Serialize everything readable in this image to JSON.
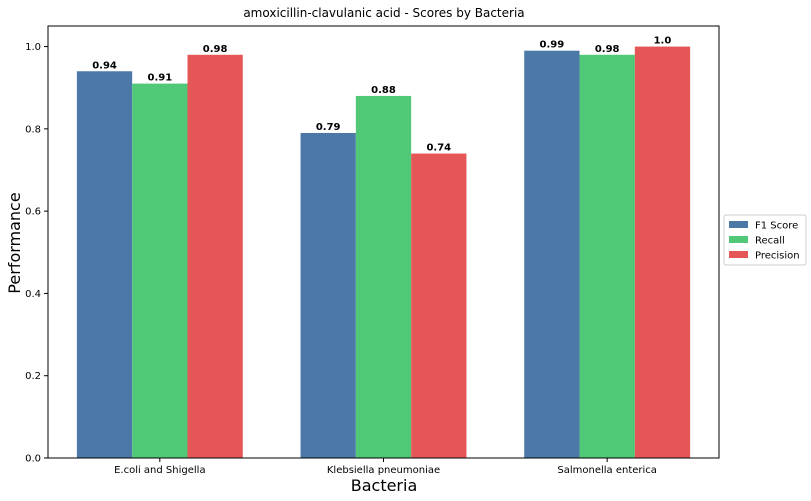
{
  "chart_data": {
    "type": "bar",
    "title": "amoxicillin-clavulanic acid - Scores by Bacteria",
    "xlabel": "Bacteria",
    "ylabel": "Performance",
    "categories": [
      "E.coli and Shigella",
      "Klebsiella pneumoniae",
      "Salmonella enterica"
    ],
    "series": [
      {
        "name": "F1 Score",
        "color": "#4c78a8",
        "values": [
          0.94,
          0.79,
          0.99
        ],
        "labels": [
          "0.94",
          "0.79",
          "0.99"
        ]
      },
      {
        "name": "Recall",
        "color": "#50c878",
        "values": [
          0.91,
          0.88,
          0.98
        ],
        "labels": [
          "0.91",
          "0.88",
          "0.98"
        ]
      },
      {
        "name": "Precision",
        "color": "#e45756",
        "values": [
          0.98,
          0.74,
          1.0
        ],
        "labels": [
          "0.98",
          "0.74",
          "1.0"
        ]
      }
    ],
    "ylim": [
      0,
      1.05
    ],
    "yticks": [
      "0.0",
      "0.2",
      "0.4",
      "0.6",
      "0.8",
      "1.0"
    ],
    "grid": false,
    "legend_position": "right"
  }
}
